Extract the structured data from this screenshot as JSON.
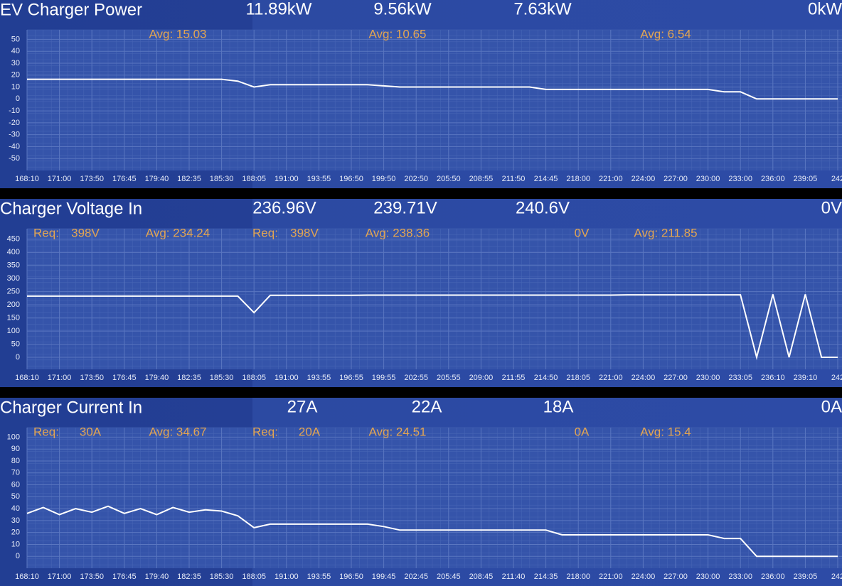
{
  "chart_data": [
    {
      "type": "line",
      "title": "EV Charger Power",
      "readouts": [
        "11.89kW",
        "9.56kW",
        "7.63kW",
        "0kW"
      ],
      "annotations": [
        "Avg: 15.03",
        "Avg: 10.65",
        "Avg: 6.54"
      ],
      "categories": [
        "168:10",
        null,
        "171:00",
        null,
        "173:50",
        null,
        "176:45",
        null,
        "179:40",
        null,
        "182:35",
        null,
        "185:30",
        null,
        "188:05",
        null,
        "191:00",
        null,
        "193:55",
        null,
        "196:50",
        null,
        "199:50",
        null,
        "202:50",
        null,
        "205:50",
        null,
        "208:55",
        null,
        "211:50",
        null,
        "214:45",
        null,
        "218:00",
        null,
        "221:00",
        null,
        "224:00",
        null,
        "227:00",
        null,
        "230:00",
        null,
        "233:00",
        null,
        "236:00",
        null,
        "239:05",
        null,
        "242"
      ],
      "values": [
        16.5,
        16.5,
        16.5,
        16.5,
        16.5,
        16.5,
        16.5,
        16.5,
        16.5,
        16.5,
        16.5,
        16.5,
        16.5,
        15,
        10,
        12,
        12,
        12,
        12,
        12,
        12,
        12,
        11,
        10,
        10,
        10,
        10,
        10,
        10,
        10,
        10,
        10,
        8,
        8,
        8,
        8,
        8,
        8,
        8,
        8,
        8,
        8,
        8,
        6,
        6,
        0,
        0,
        0,
        0,
        0,
        0
      ],
      "color": "#ffffff",
      "ylim": [
        -60,
        58
      ],
      "yticks": [
        -50,
        -40,
        -30,
        -20,
        -10,
        0,
        10,
        20,
        30,
        40,
        50
      ],
      "grid": true
    },
    {
      "type": "line",
      "title": "Charger Voltage In",
      "readouts": [
        "236.96V",
        "239.71V",
        "240.6V",
        "0V"
      ],
      "annotations": [
        "Req:",
        "398V",
        "Avg: 234.24",
        "Req:",
        "398V",
        "Avg: 238.36",
        "0V",
        "Avg: 211.85"
      ],
      "categories": [
        "168:10",
        null,
        "171:00",
        null,
        "173:50",
        null,
        "176:45",
        null,
        "179:40",
        null,
        "182:35",
        null,
        "185:30",
        null,
        "188:05",
        null,
        "191:00",
        null,
        "193:55",
        null,
        "196:55",
        null,
        "199:55",
        null,
        "202:55",
        null,
        "205:55",
        null,
        "209:00",
        null,
        "211:55",
        null,
        "214:50",
        null,
        "218:05",
        null,
        "221:00",
        null,
        "224:00",
        null,
        "227:00",
        null,
        "230:00",
        null,
        "233:05",
        null,
        "236:10",
        null,
        "239:10",
        null,
        "242"
      ],
      "values": [
        233,
        233,
        233,
        233,
        233,
        233,
        233,
        233,
        233,
        233,
        233,
        233,
        233,
        233,
        170,
        236,
        236,
        236,
        236,
        236,
        236,
        237,
        237,
        237,
        237,
        237,
        237,
        237,
        237,
        237,
        237,
        237,
        237,
        237,
        237,
        237,
        237,
        238,
        238,
        238,
        238,
        238,
        238,
        238,
        238,
        0,
        240,
        0,
        240,
        0,
        0
      ],
      "color": "#ffffff",
      "ylim": [
        -46,
        490
      ],
      "yticks": [
        0,
        50,
        100,
        150,
        200,
        250,
        300,
        350,
        400,
        450
      ],
      "grid": true
    },
    {
      "type": "line",
      "title": "Charger Current In",
      "readouts": [
        "27A",
        "22A",
        "18A",
        "0A"
      ],
      "annotations": [
        "Req:",
        "30A",
        "Avg: 34.67",
        "Req:",
        "20A",
        "Avg: 24.51",
        "0A",
        "Avg: 15.4"
      ],
      "categories": [
        "168:10",
        null,
        "171:00",
        null,
        "173:50",
        null,
        "176:45",
        null,
        "179:40",
        null,
        "182:35",
        null,
        "185:30",
        null,
        "188:05",
        null,
        "191:00",
        null,
        "193:55",
        null,
        "196:50",
        null,
        "199:45",
        null,
        "202:45",
        null,
        "205:45",
        null,
        "208:45",
        null,
        "211:40",
        null,
        "214:35",
        null,
        "218:00",
        null,
        "221:00",
        null,
        "224:00",
        null,
        "227:00",
        null,
        "230:00",
        null,
        "233:00",
        null,
        "236:00",
        null,
        "239:05",
        null,
        "242"
      ],
      "values": [
        36,
        41,
        35,
        40,
        37,
        42,
        36,
        40,
        35,
        41,
        37,
        39,
        38,
        34,
        24,
        27,
        27,
        27,
        27,
        27,
        27,
        27,
        25,
        22,
        22,
        22,
        22,
        22,
        22,
        22,
        22,
        22,
        22,
        18,
        18,
        18,
        18,
        18,
        18,
        18,
        18,
        18,
        18,
        15,
        15,
        0,
        0,
        0,
        0,
        0,
        0
      ],
      "color": "#ffffff",
      "ylim": [
        -10,
        108
      ],
      "yticks": [
        0,
        10,
        20,
        30,
        40,
        50,
        60,
        70,
        80,
        90,
        100
      ],
      "grid": true
    }
  ]
}
